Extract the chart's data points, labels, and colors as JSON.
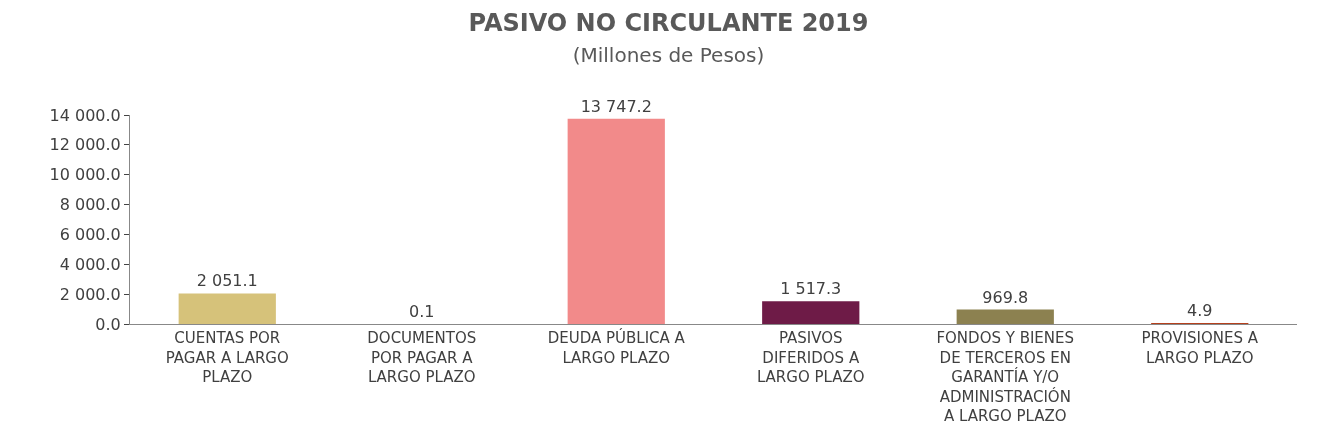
{
  "chart_data": {
    "type": "bar",
    "title": "PASIVO NO CIRCULANTE 2019",
    "subtitle": "(Millones de Pesos)",
    "categories": [
      "CUENTAS POR\nPAGAR A LARGO\nPLAZO",
      "DOCUMENTOS\nPOR PAGAR A\nLARGO PLAZO",
      "DEUDA PÚBLICA A\nLARGO PLAZO",
      "PASIVOS\nDIFERIDOS A\nLARGO PLAZO",
      "FONDOS Y BIENES\nDE TERCEROS EN\nGARANTÍA Y/O\nADMINISTRACIÓN\nA LARGO PLAZO",
      "PROVISIONES A\nLARGO PLAZO"
    ],
    "values": [
      2051.1,
      0.1,
      13747.2,
      1517.3,
      969.8,
      4.9
    ],
    "value_labels": [
      "2 051.1",
      "0.1",
      "13 747.2",
      "1 517.3",
      "969.8",
      "4.9"
    ],
    "colors": [
      "#d6c27a",
      "#8b1a2a",
      "#f28a8a",
      "#6e1b47",
      "#8c8150",
      "#b5401c"
    ],
    "ylim": [
      0,
      14000
    ],
    "yticks": [
      {
        "value": 0,
        "label": "0.0"
      },
      {
        "value": 2000,
        "label": "2 000.0"
      },
      {
        "value": 4000,
        "label": "4 000.0"
      },
      {
        "value": 6000,
        "label": "6 000.0"
      },
      {
        "value": 8000,
        "label": "8 000.0"
      },
      {
        "value": 10000,
        "label": "10 000.0"
      },
      {
        "value": 12000,
        "label": "12 000.0"
      },
      {
        "value": 14000,
        "label": "14 000.0"
      }
    ]
  }
}
